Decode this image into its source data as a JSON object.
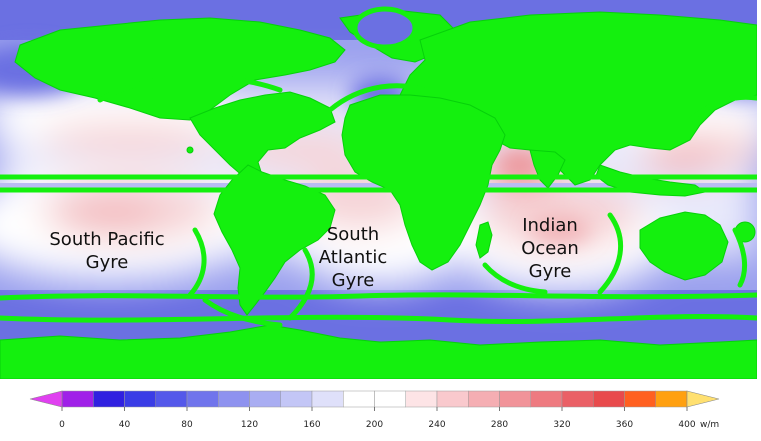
{
  "map": {
    "colors": {
      "land": "#14f00e",
      "land_edge": "#06d10a",
      "ocean_base": "#9aa0ee",
      "ocean_dark": "#6b70e2",
      "ocean_mid": "#b9bcf3",
      "ocean_pale": "#e8e9fb",
      "ocean_white": "#ffffff",
      "ocean_pink": "#f6d3d6",
      "ocean_rose": "#f2b4b8",
      "ocean_red": "#ec979c"
    },
    "labels": {
      "south_pacific": [
        "South Pacific",
        "Gyre"
      ],
      "south_atlantic": [
        "South",
        "Atlantic",
        "Gyre"
      ],
      "indian_ocean": [
        "Indian",
        "Ocean",
        "Gyre"
      ]
    }
  },
  "colorbar": {
    "unit": "w/m",
    "ticks": [
      "0",
      "40",
      "80",
      "120",
      "160",
      "200",
      "240",
      "280",
      "320",
      "360",
      "400"
    ],
    "min_arrow_color": "#e040f0",
    "max_arrow_color": "#ffe070",
    "bins": [
      {
        "from": 0,
        "to": 20,
        "color": "#a020e8"
      },
      {
        "from": 20,
        "to": 40,
        "color": "#3020e0"
      },
      {
        "from": 40,
        "to": 60,
        "color": "#3a3ce6"
      },
      {
        "from": 60,
        "to": 80,
        "color": "#5458ea"
      },
      {
        "from": 80,
        "to": 100,
        "color": "#7074ec"
      },
      {
        "from": 100,
        "to": 120,
        "color": "#8e92ef"
      },
      {
        "from": 120,
        "to": 140,
        "color": "#a9adf2"
      },
      {
        "from": 140,
        "to": 160,
        "color": "#c3c6f6"
      },
      {
        "from": 160,
        "to": 180,
        "color": "#dfe0fa"
      },
      {
        "from": 180,
        "to": 200,
        "color": "#ffffff"
      },
      {
        "from": 200,
        "to": 220,
        "color": "#ffffff"
      },
      {
        "from": 220,
        "to": 240,
        "color": "#fde4e6"
      },
      {
        "from": 240,
        "to": 260,
        "color": "#f9c9cd"
      },
      {
        "from": 260,
        "to": 280,
        "color": "#f5aeb3"
      },
      {
        "from": 280,
        "to": 300,
        "color": "#f19399"
      },
      {
        "from": 300,
        "to": 320,
        "color": "#ee7a80"
      },
      {
        "from": 320,
        "to": 340,
        "color": "#ea6066"
      },
      {
        "from": 340,
        "to": 360,
        "color": "#e84a4c"
      },
      {
        "from": 360,
        "to": 380,
        "color": "#ff6020"
      },
      {
        "from": 380,
        "to": 400,
        "color": "#ffa010"
      }
    ]
  }
}
